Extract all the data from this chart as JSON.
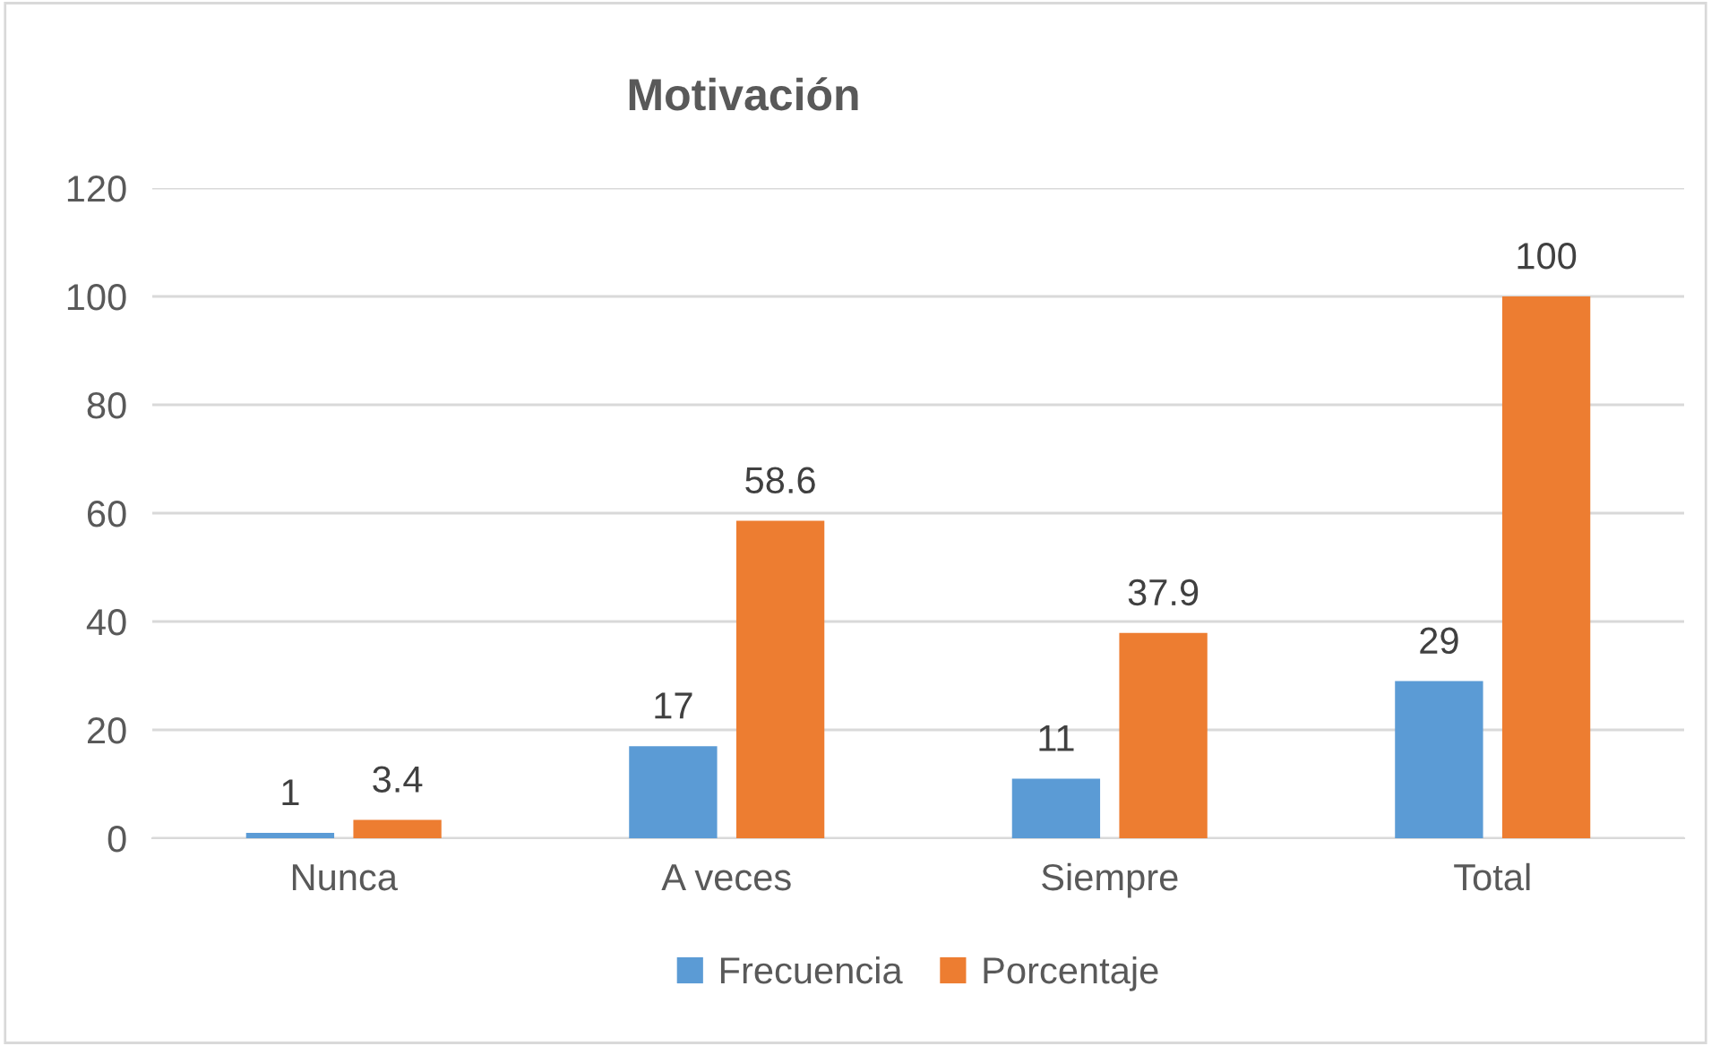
{
  "chart_data": {
    "type": "bar",
    "title": "Motivación",
    "categories": [
      "Nunca",
      "A veces",
      "Siempre",
      "Total"
    ],
    "series": [
      {
        "name": "Frecuencia",
        "color": "#5b9bd5",
        "values": [
          1,
          17,
          11,
          29
        ]
      },
      {
        "name": "Porcentaje",
        "color": "#ed7d31",
        "values": [
          3.4,
          58.6,
          37.9,
          100
        ]
      }
    ],
    "ylim": [
      0,
      120
    ],
    "yticks": [
      0,
      20,
      40,
      60,
      80,
      100,
      120
    ],
    "grid": "y",
    "legend": "bottom",
    "data_labels": true
  }
}
